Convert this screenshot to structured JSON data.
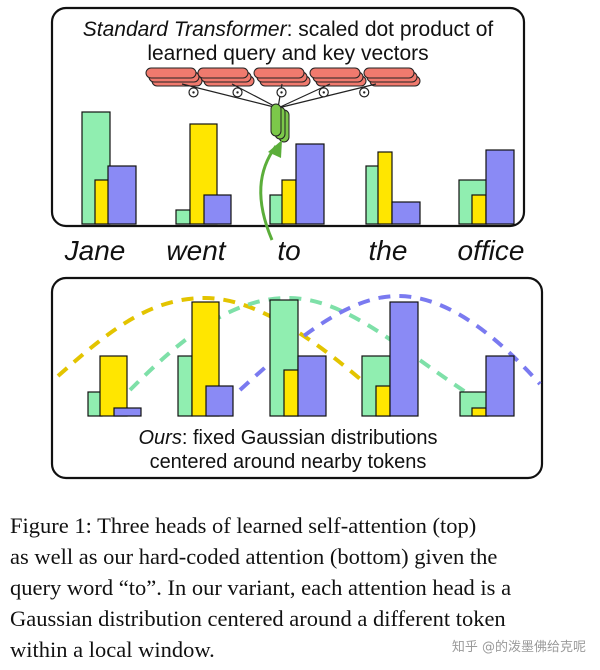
{
  "top_panel": {
    "title_italic": "Standard Transformer",
    "title_rest": ": scaled dot product of",
    "title_line2": "learned query and key vectors"
  },
  "words": [
    "Jane",
    "went",
    "to",
    "the",
    "office"
  ],
  "bottom_panel": {
    "title_italic": "Ours",
    "title_rest": ": fixed Gaussian distributions",
    "title_line2": "centered around nearby tokens"
  },
  "caption": {
    "lines": [
      "Figure 1: Three heads of learned self-attention (top)",
      "as well as our hard-coded attention (bottom) given the",
      "query word “to”. In our variant, each attention head is a",
      "Gaussian distribution centered around a different token",
      "within a local window."
    ]
  },
  "watermark": "知乎 @的泼墨佛给克呢",
  "colors": {
    "green": "#90EEB0",
    "yellow": "#FFE600",
    "blue": "#8A8AF5",
    "key_red": "#F07A6E",
    "query_green": "#7CC84A",
    "arrow": "#5BAE3A"
  }
}
